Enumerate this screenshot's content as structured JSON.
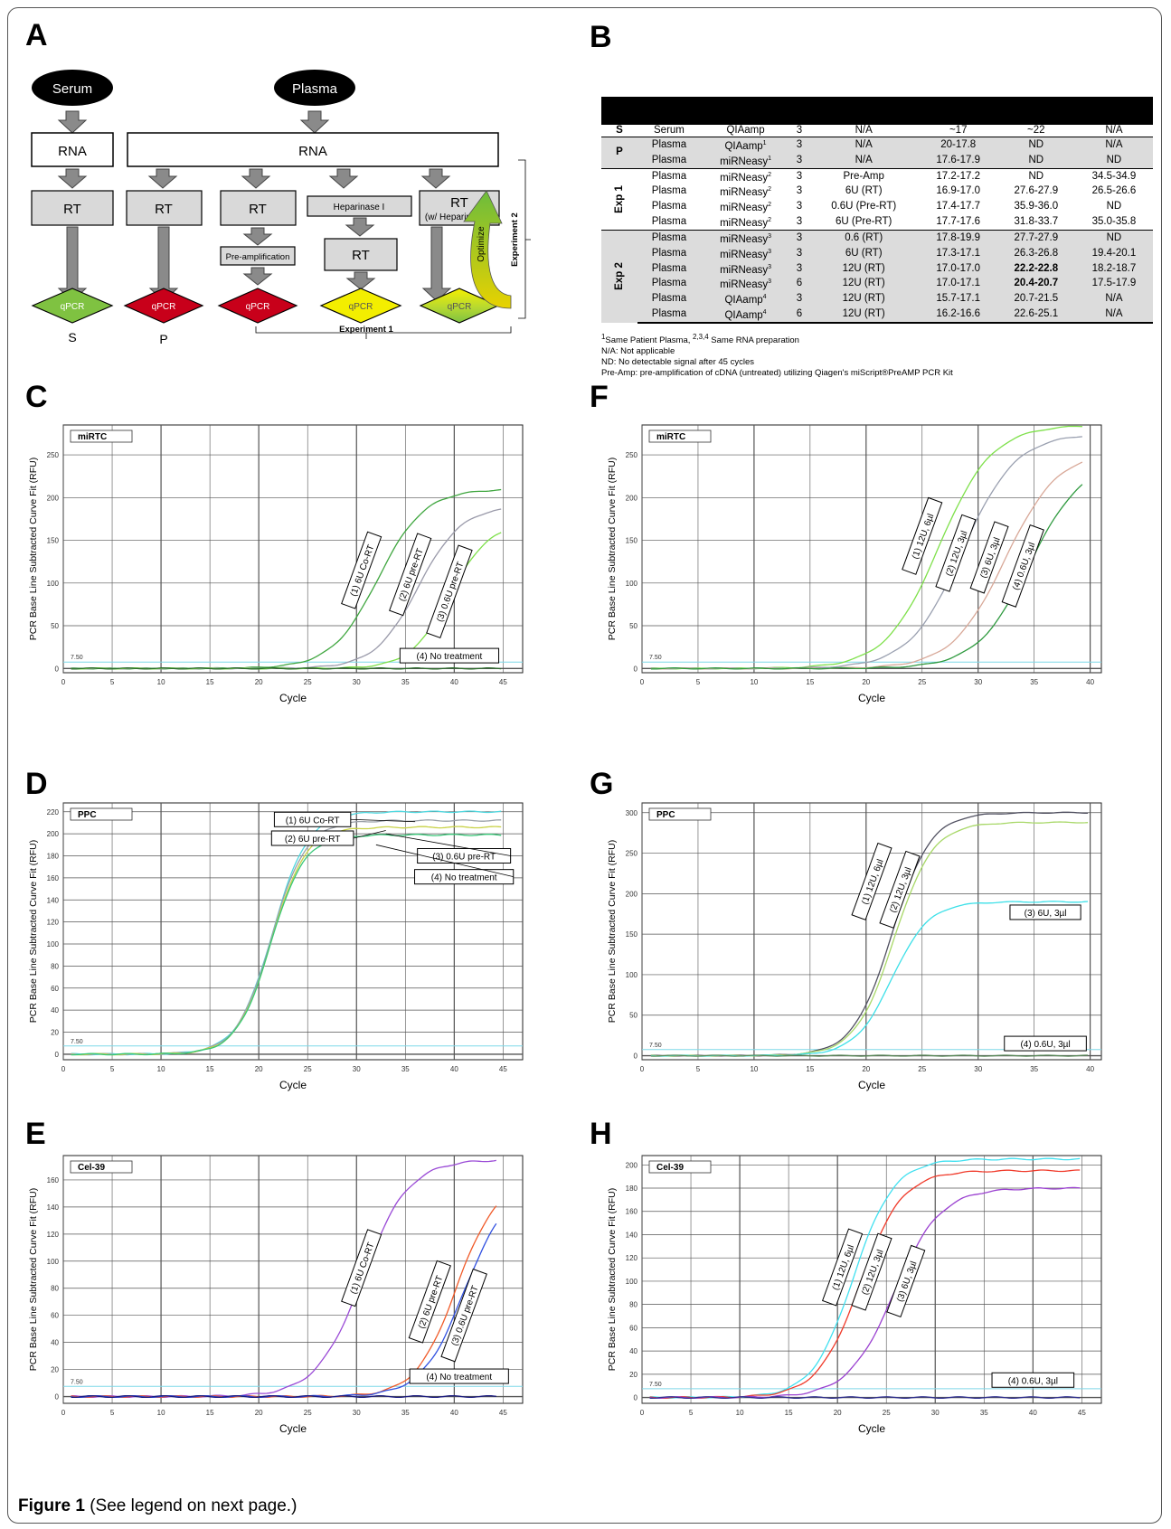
{
  "panel_labels": [
    "A",
    "B",
    "C",
    "D",
    "E",
    "F",
    "G",
    "H"
  ],
  "caption": {
    "label": "Figure 1",
    "text": "(See legend on next page.)"
  },
  "panel_a": {
    "sources": [
      "Serum",
      "Plasma"
    ],
    "rna": "RNA",
    "rt": "RT",
    "heparinase": "Heparinase I",
    "rt_with_hep_line1": "RT",
    "rt_with_hep_line2": "(w/ Heparinase I)",
    "preamp": "Pre-amplification",
    "qpcr": "qPCR",
    "labels": [
      "S",
      "P"
    ],
    "experiment1": "Experiment 1",
    "experiment2": "Experiment 2",
    "optimize": "Optimize",
    "diamond_colors": [
      "#7fc241",
      "#c8001a",
      "#c8001a",
      "#f3ee00",
      "#9fd23f"
    ]
  },
  "panel_b": {
    "rows": [
      {
        "grp": "S",
        "c": [
          "Serum",
          "QIAamp",
          "3",
          "N/A",
          "~17",
          "~22",
          "N/A"
        ],
        "sup": "",
        "bold": [
          false,
          false,
          false
        ]
      },
      {
        "grp": "P",
        "c": [
          "Plasma",
          "QIAamp",
          "3",
          "N/A",
          "20-17.8",
          "ND",
          "N/A"
        ],
        "sup": "1",
        "bold": [
          false,
          false,
          false
        ]
      },
      {
        "grp": "",
        "c": [
          "Plasma",
          "miRNeasy",
          "3",
          "N/A",
          "17.6-17.9",
          "ND",
          "ND"
        ],
        "sup": "1",
        "bold": [
          false,
          false,
          false
        ]
      },
      {
        "grp": "Exp 1",
        "c": [
          "Plasma",
          "miRNeasy",
          "3",
          "Pre-Amp",
          "17.2-17.2",
          "ND",
          "34.5-34.9"
        ],
        "sup": "2",
        "bold": [
          false,
          false,
          false
        ]
      },
      {
        "grp": "",
        "c": [
          "Plasma",
          "miRNeasy",
          "3",
          "6U (RT)",
          "16.9-17.0",
          "27.6-27.9",
          "26.5-26.6"
        ],
        "sup": "2",
        "bold": [
          false,
          false,
          false
        ]
      },
      {
        "grp": "",
        "c": [
          "Plasma",
          "miRNeasy",
          "3",
          "0.6U (Pre-RT)",
          "17.4-17.7",
          "35.9-36.0",
          "ND"
        ],
        "sup": "2",
        "bold": [
          false,
          false,
          false
        ]
      },
      {
        "grp": "",
        "c": [
          "Plasma",
          "miRNeasy",
          "3",
          "6U (Pre-RT)",
          "17.7-17.6",
          "31.8-33.7",
          "35.0-35.8"
        ],
        "sup": "2",
        "bold": [
          false,
          false,
          false
        ]
      },
      {
        "grp": "Exp 2",
        "c": [
          "Plasma",
          "miRNeasy",
          "3",
          "0.6 (RT)",
          "17.8-19.9",
          "27.7-27.9",
          "ND"
        ],
        "sup": "3",
        "bold": [
          false,
          false,
          false
        ]
      },
      {
        "grp": "",
        "c": [
          "Plasma",
          "miRNeasy",
          "3",
          "6U (RT)",
          "17.3-17.1",
          "26.3-26.8",
          "19.4-20.1"
        ],
        "sup": "3",
        "bold": [
          false,
          false,
          false
        ]
      },
      {
        "grp": "",
        "c": [
          "Plasma",
          "miRNeasy",
          "3",
          "12U (RT)",
          "17.0-17.0",
          "22.2-22.8",
          "18.2-18.7"
        ],
        "sup": "3",
        "bold": [
          false,
          true,
          false
        ]
      },
      {
        "grp": "",
        "c": [
          "Plasma",
          "miRNeasy",
          "6",
          "12U (RT)",
          "17.0-17.1",
          "20.4-20.7",
          "17.5-17.9"
        ],
        "sup": "3",
        "bold": [
          false,
          true,
          false
        ]
      },
      {
        "grp": "",
        "c": [
          "Plasma",
          "QIAamp",
          "3",
          "12U (RT)",
          "15.7-17.1",
          "20.7-21.5",
          "N/A"
        ],
        "sup": "4",
        "bold": [
          false,
          false,
          false
        ]
      },
      {
        "grp": "",
        "c": [
          "Plasma",
          "QIAamp",
          "6",
          "12U (RT)",
          "16.2-16.6",
          "22.6-25.1",
          "N/A"
        ],
        "sup": "4",
        "bold": [
          false,
          false,
          false
        ]
      }
    ],
    "note1_sup_a": "1",
    "note1_a": "Same Patient Plasma, ",
    "note1_sup_b": "2,3,4",
    "note1_b": " Same RNA preparation",
    "note2": "N/A: Not applicable",
    "note3": "ND: No detectable signal after 45 cycles",
    "note4": "Pre-Amp: pre-amplification of cDNA (untreated) utilizing Qiagen's miScript®PreAMP PCR Kit"
  },
  "chart_data": [
    {
      "panel": "C",
      "type": "line",
      "title": "miRTC",
      "xlabel": "Cycle",
      "ylabel": "PCR Base Line Subtracted Curve Fit (RFU)",
      "xlim": [
        0,
        47
      ],
      "ylim": [
        -5,
        285
      ],
      "yticks": [
        0,
        50,
        100,
        150,
        200,
        250
      ],
      "xticks": [
        0,
        5,
        10,
        15,
        20,
        25,
        30,
        35,
        40,
        45
      ],
      "threshold": 7.5,
      "threshold_label": "7.50",
      "series": [
        {
          "label": "(1) 6U Co-RT",
          "color": "#3fa63f",
          "sigmoid": {
            "amp": 210,
            "mid": 32.2,
            "k": 0.42
          },
          "xmax": 45
        },
        {
          "label": "(2) 6U pre-RT",
          "color": "#9a9aaa",
          "sigmoid": {
            "amp": 190,
            "mid": 36.3,
            "k": 0.45
          },
          "xmax": 45
        },
        {
          "label": "(3) 0.6U pre-RT",
          "color": "#7ee04a",
          "sigmoid": {
            "amp": 170,
            "mid": 39.5,
            "k": 0.5
          },
          "xmax": 45
        },
        {
          "label": "(4) No treatment",
          "color": "#2a6b2a",
          "sigmoid": {
            "amp": 0,
            "mid": 40,
            "k": 0.5
          },
          "xmax": 45
        }
      ]
    },
    {
      "panel": "D",
      "type": "line",
      "title": "PPC",
      "xlabel": "Cycle",
      "ylabel": "PCR Base Line Subtracted Curve Fit (RFU)",
      "xlim": [
        0,
        47
      ],
      "ylim": [
        -5,
        228
      ],
      "yticks": [
        0,
        20,
        40,
        60,
        80,
        100,
        120,
        140,
        160,
        180,
        200,
        220
      ],
      "xticks": [
        0,
        5,
        10,
        15,
        20,
        25,
        30,
        35,
        40,
        45
      ],
      "threshold": 7.5,
      "threshold_label": "7.50",
      "series": [
        {
          "label": "(1) 6U Co-RT",
          "color": "#4fd8e0",
          "sigmoid": {
            "amp": 220,
            "mid": 21.4,
            "k": 0.55
          },
          "xmax": 45
        },
        {
          "label": "(2) 6U pre-RT",
          "color": "#9aa0a8",
          "sigmoid": {
            "amp": 212,
            "mid": 21.3,
            "k": 0.56
          },
          "xmax": 45
        },
        {
          "label": "(3) 0.6U pre-RT",
          "color": "#c8d246",
          "sigmoid": {
            "amp": 206,
            "mid": 21.3,
            "k": 0.57
          },
          "xmax": 45
        },
        {
          "label": "(4) No treatment",
          "color": "#38c878",
          "sigmoid": {
            "amp": 199,
            "mid": 21.2,
            "k": 0.58
          },
          "xmax": 45
        }
      ]
    },
    {
      "panel": "E",
      "type": "line",
      "title": "Cel-39",
      "xlabel": "Cycle",
      "ylabel": "PCR Base Line Subtracted Curve Fit (RFU)",
      "xlim": [
        0,
        47
      ],
      "ylim": [
        -5,
        178
      ],
      "yticks": [
        0,
        20,
        40,
        60,
        80,
        100,
        120,
        140,
        160
      ],
      "xticks": [
        0,
        5,
        10,
        15,
        20,
        25,
        30,
        35,
        40,
        45
      ],
      "threshold": 7.5,
      "threshold_label": "7.50",
      "series": [
        {
          "label": "(1) 6U Co-RT",
          "color": "#9a4ad6",
          "sigmoid": {
            "amp": 175,
            "mid": 30.6,
            "k": 0.42
          },
          "xmax": 44.5
        },
        {
          "label": "(2) 6U pre-RT",
          "color": "#f05a28",
          "sigmoid": {
            "amp": 160,
            "mid": 40.2,
            "k": 0.48
          },
          "xmax": 44.5
        },
        {
          "label": "(3) 0.6U pre-RT",
          "color": "#3050e0",
          "sigmoid": {
            "amp": 155,
            "mid": 41.0,
            "k": 0.46
          },
          "xmax": 44.5
        },
        {
          "label": "(4) No treatment",
          "color": "#1a1a80",
          "sigmoid": {
            "amp": 0,
            "mid": 40,
            "k": 0.5
          },
          "xmax": 44.5
        }
      ]
    },
    {
      "panel": "F",
      "type": "line",
      "title": "miRTC",
      "xlabel": "Cycle",
      "ylabel": "PCR Base Line Subtracted Curve Fit (RFU)",
      "xlim": [
        0,
        41
      ],
      "ylim": [
        -5,
        285
      ],
      "yticks": [
        0,
        50,
        100,
        150,
        200,
        250
      ],
      "xticks": [
        0,
        5,
        10,
        15,
        20,
        25,
        30,
        35,
        40
      ],
      "threshold": 7.5,
      "threshold_label": "7.50",
      "series": [
        {
          "label": "(1) 12U, 6µl",
          "color": "#7ee04a",
          "sigmoid": {
            "amp": 285,
            "mid": 26.5,
            "k": 0.42
          },
          "xmax": 39.5
        },
        {
          "label": "(2) 12U, 3µl",
          "color": "#9aa0b0",
          "sigmoid": {
            "amp": 275,
            "mid": 28.6,
            "k": 0.42
          },
          "xmax": 39.5
        },
        {
          "label": "(3) 6U, 3µl",
          "color": "#d8a898",
          "sigmoid": {
            "amp": 255,
            "mid": 32.4,
            "k": 0.42
          },
          "xmax": 39.5
        },
        {
          "label": "(4) 0.6U, 3µl",
          "color": "#2f9a3f",
          "sigmoid": {
            "amp": 245,
            "mid": 34.6,
            "k": 0.42
          },
          "xmax": 39.5
        }
      ]
    },
    {
      "panel": "G",
      "type": "line",
      "title": "PPC",
      "xlabel": "Cycle",
      "ylabel": "PCR Base Line Subtracted Curve Fit (RFU)",
      "xlim": [
        0,
        41
      ],
      "ylim": [
        -5,
        312
      ],
      "yticks": [
        0,
        50,
        100,
        150,
        200,
        250,
        300
      ],
      "xticks": [
        0,
        5,
        10,
        15,
        20,
        25,
        30,
        35,
        40
      ],
      "threshold": 7.5,
      "threshold_label": "7.50",
      "series": [
        {
          "label": "(1) 12U, 6µl",
          "color": "#505060",
          "sigmoid": {
            "amp": 300,
            "mid": 22.3,
            "k": 0.58
          },
          "xmax": 40
        },
        {
          "label": "(2) 12U, 3µl",
          "color": "#a8d868",
          "sigmoid": {
            "amp": 288,
            "mid": 22.5,
            "k": 0.58
          },
          "xmax": 40
        },
        {
          "label": "(3) 6U, 3µl",
          "color": "#3ee0e8",
          "sigmoid": {
            "amp": 190,
            "mid": 22.3,
            "k": 0.6
          },
          "xmax": 40
        },
        {
          "label": "(4) 0.6U, 3µl",
          "color": "#5a8a5a",
          "sigmoid": {
            "amp": 0,
            "mid": 30,
            "k": 0.5
          },
          "xmax": 40
        }
      ]
    },
    {
      "panel": "H",
      "type": "line",
      "title": "Cel-39",
      "xlabel": "Cycle",
      "ylabel": "PCR Base Line Subtracted Curve Fit (RFU)",
      "xlim": [
        0,
        47
      ],
      "ylim": [
        -5,
        208
      ],
      "yticks": [
        0,
        20,
        40,
        60,
        80,
        100,
        120,
        140,
        160,
        180,
        200
      ],
      "xticks": [
        0,
        5,
        10,
        15,
        20,
        25,
        30,
        35,
        40,
        45
      ],
      "threshold": 7.5,
      "threshold_label": "7.50",
      "series": [
        {
          "label": "(1) 12U, 6µl",
          "color": "#40e0f0",
          "sigmoid": {
            "amp": 205,
            "mid": 21.6,
            "k": 0.48
          },
          "xmax": 45
        },
        {
          "label": "(2) 12U, 3µl",
          "color": "#f03a2a",
          "sigmoid": {
            "amp": 195,
            "mid": 22.3,
            "k": 0.46
          },
          "xmax": 45
        },
        {
          "label": "(3) 6U, 3µl",
          "color": "#9a40d0",
          "sigmoid": {
            "amp": 180,
            "mid": 25.8,
            "k": 0.42
          },
          "xmax": 45
        },
        {
          "label": "(4) 0.6U, 3µl",
          "color": "#303090",
          "sigmoid": {
            "amp": 0,
            "mid": 30,
            "k": 0.5
          },
          "xmax": 45
        }
      ]
    }
  ]
}
